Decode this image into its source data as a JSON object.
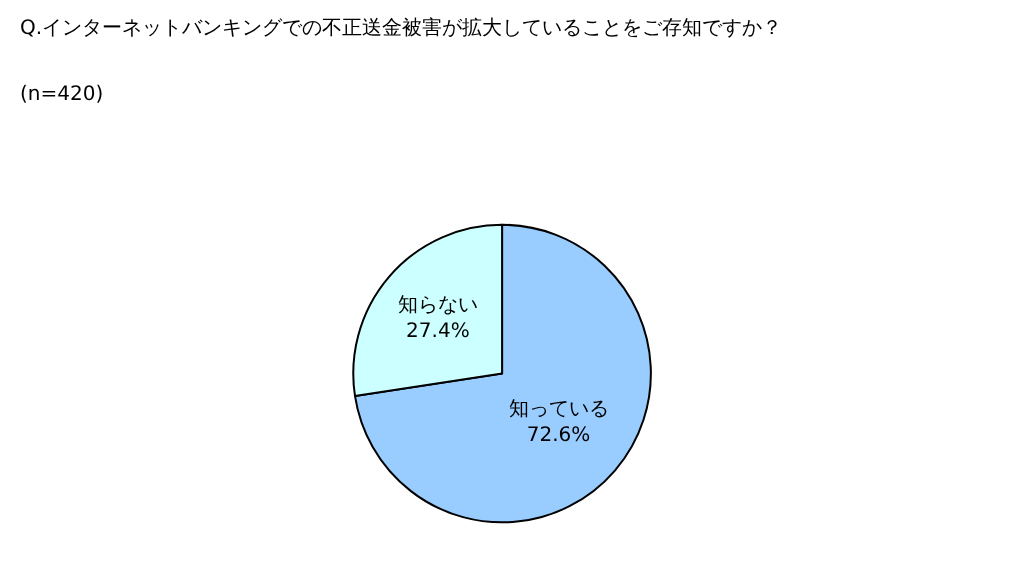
{
  "chart_data": {
    "type": "pie",
    "title": "Q.インターネットバンキングでの不正送金被害が拡大していることをご存知ですか？",
    "subtitle": "(n=420)",
    "categories": [
      "知っている",
      "知らない"
    ],
    "values": [
      72.6,
      27.4
    ],
    "value_labels": [
      "72.6%",
      "27.4%"
    ],
    "colors": [
      "#99ccff",
      "#ccffff"
    ],
    "legend": false
  }
}
